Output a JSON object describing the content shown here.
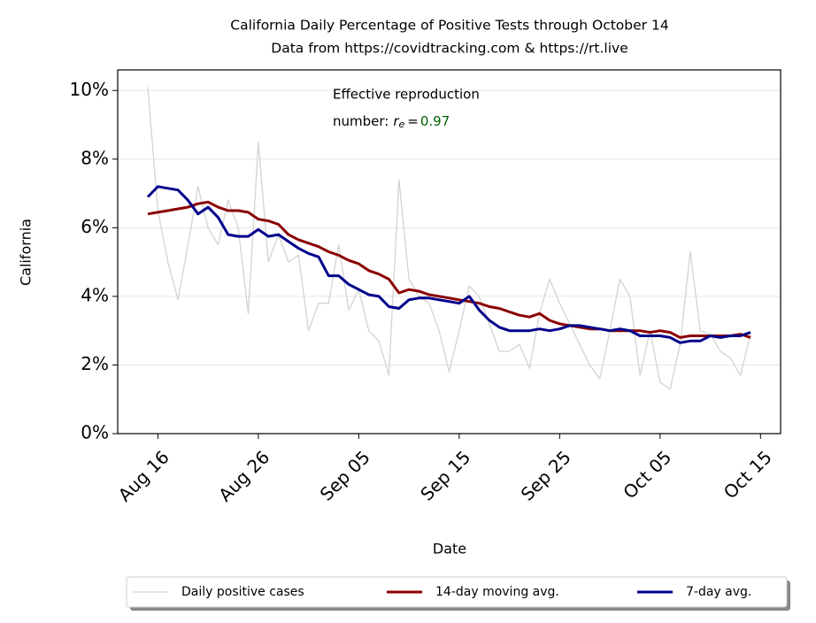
{
  "chart_data": {
    "type": "line",
    "title": "California Daily Percentage of Positive Tests through October 14",
    "subtitle": "Data from https://covidtracking.com & https://rt.live",
    "x_label": "Date",
    "y_label": "California",
    "annotation_line1": "Effective reproduction",
    "annotation_line2": "number:",
    "annotation_symbol": "r",
    "annotation_subscript": "e",
    "annotation_equals": "=",
    "rt_value": 0.97,
    "rt_color": "#006400",
    "x": [
      "Aug 15",
      "Aug 16",
      "Aug 17",
      "Aug 18",
      "Aug 19",
      "Aug 20",
      "Aug 21",
      "Aug 22",
      "Aug 23",
      "Aug 24",
      "Aug 25",
      "Aug 26",
      "Aug 27",
      "Aug 28",
      "Aug 29",
      "Aug 30",
      "Aug 31",
      "Sep 01",
      "Sep 02",
      "Sep 03",
      "Sep 04",
      "Sep 05",
      "Sep 06",
      "Sep 07",
      "Sep 08",
      "Sep 09",
      "Sep 10",
      "Sep 11",
      "Sep 12",
      "Sep 13",
      "Sep 14",
      "Sep 15",
      "Sep 16",
      "Sep 17",
      "Sep 18",
      "Sep 19",
      "Sep 20",
      "Sep 21",
      "Sep 22",
      "Sep 23",
      "Sep 24",
      "Sep 25",
      "Sep 26",
      "Sep 27",
      "Sep 28",
      "Sep 29",
      "Sep 30",
      "Oct 01",
      "Oct 02",
      "Oct 03",
      "Oct 04",
      "Oct 05",
      "Oct 06",
      "Oct 07",
      "Oct 08",
      "Oct 09",
      "Oct 10",
      "Oct 11",
      "Oct 12",
      "Oct 13",
      "Oct 14"
    ],
    "series": [
      {
        "name": "Daily positive cases",
        "color": "#d3d3d3",
        "width": 1.3,
        "values": [
          10.1,
          6.5,
          5.0,
          3.9,
          5.5,
          7.2,
          6.0,
          5.5,
          6.8,
          6.0,
          3.5,
          8.5,
          5.0,
          5.8,
          5.0,
          5.2,
          3.0,
          3.8,
          3.8,
          5.5,
          3.6,
          4.2,
          3.0,
          2.7,
          1.7,
          7.4,
          4.5,
          4.0,
          3.8,
          3.0,
          1.8,
          3.0,
          4.3,
          4.0,
          3.2,
          2.4,
          2.4,
          2.6,
          1.9,
          3.5,
          4.5,
          3.8,
          3.2,
          2.6,
          2.0,
          1.6,
          3.0,
          4.5,
          4.0,
          1.7,
          3.0,
          1.5,
          1.3,
          2.6,
          5.3,
          3.0,
          2.9,
          2.4,
          2.2,
          1.7,
          2.9
        ]
      },
      {
        "name": "14-day moving avg.",
        "color": "#8b0000",
        "width": 3,
        "values": [
          6.4,
          6.45,
          6.5,
          6.55,
          6.6,
          6.7,
          6.75,
          6.6,
          6.5,
          6.5,
          6.45,
          6.25,
          6.2,
          6.1,
          5.8,
          5.65,
          5.55,
          5.45,
          5.3,
          5.2,
          5.05,
          4.95,
          4.75,
          4.65,
          4.5,
          4.1,
          4.2,
          4.15,
          4.05,
          4.0,
          3.95,
          3.9,
          3.85,
          3.8,
          3.7,
          3.65,
          3.55,
          3.45,
          3.4,
          3.5,
          3.3,
          3.2,
          3.15,
          3.1,
          3.05,
          3.05,
          3.0,
          3.0,
          3.0,
          3.0,
          2.95,
          3.0,
          2.95,
          2.8,
          2.85,
          2.85,
          2.85,
          2.85,
          2.85,
          2.9,
          2.8
        ]
      },
      {
        "name": "7-day avg.",
        "color": "#00008b",
        "width": 3,
        "values": [
          6.9,
          7.2,
          7.15,
          7.1,
          6.8,
          6.4,
          6.6,
          6.3,
          5.8,
          5.75,
          5.75,
          5.95,
          5.75,
          5.8,
          5.6,
          5.4,
          5.25,
          5.15,
          4.6,
          4.6,
          4.35,
          4.2,
          4.05,
          4.0,
          3.7,
          3.65,
          3.9,
          3.95,
          3.95,
          3.9,
          3.85,
          3.8,
          4.0,
          3.6,
          3.3,
          3.1,
          3.0,
          3.0,
          3.0,
          3.05,
          3.0,
          3.05,
          3.15,
          3.15,
          3.1,
          3.05,
          3.0,
          3.05,
          3.0,
          2.85,
          2.85,
          2.85,
          2.8,
          2.65,
          2.7,
          2.7,
          2.85,
          2.8,
          2.85,
          2.85,
          2.95
        ]
      }
    ],
    "xlim": [
      "Aug 12",
      "Oct 17"
    ],
    "xticks": [
      "Aug 16",
      "Aug 26",
      "Sep 05",
      "Sep 15",
      "Sep 25",
      "Oct 05",
      "Oct 15"
    ],
    "ylim": [
      0,
      10.6
    ],
    "yticks": [
      {
        "value": 0,
        "label": "0%"
      },
      {
        "value": 2,
        "label": "2%"
      },
      {
        "value": 4,
        "label": "4%"
      },
      {
        "value": 6,
        "label": "6%"
      },
      {
        "value": 8,
        "label": "8%"
      },
      {
        "value": 10,
        "label": "10%"
      }
    ],
    "grid": true,
    "legend": "lower center"
  }
}
